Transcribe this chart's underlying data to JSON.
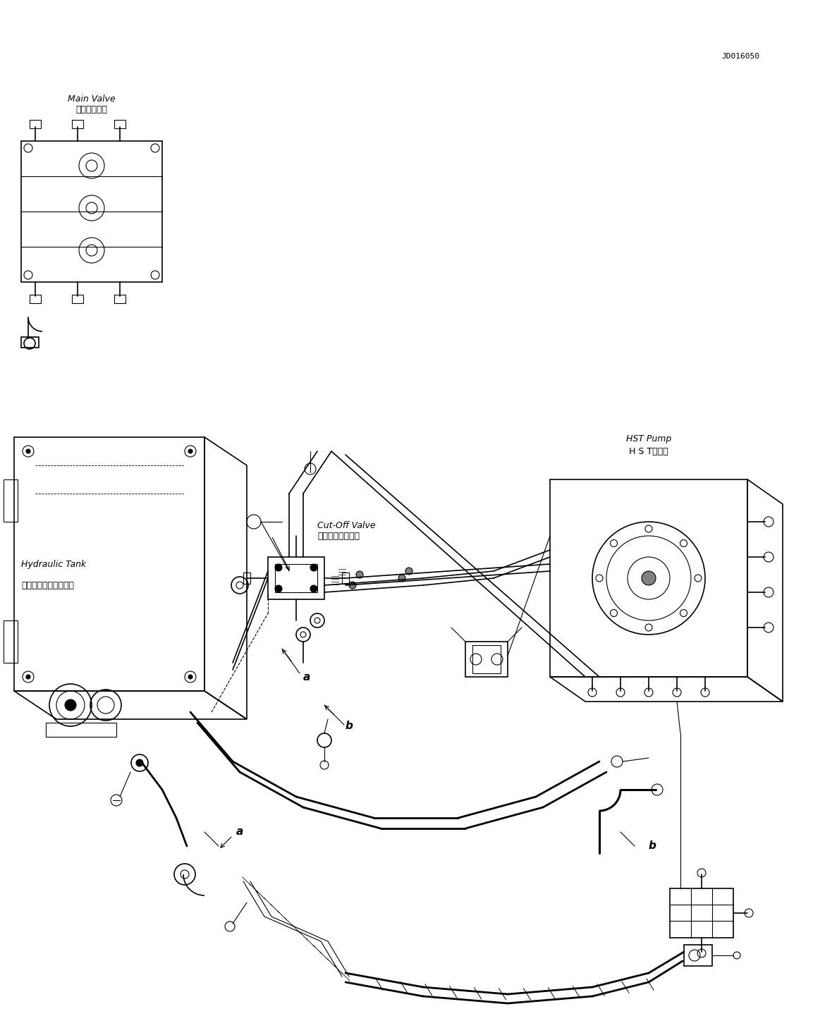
{
  "figure_width": 11.53,
  "figure_height": 14.58,
  "dpi": 100,
  "bg_color": "#ffffff",
  "line_color": "#000000",
  "diagram_code": "JD016050",
  "labels": {
    "hydraulic_tank_jp": "ハイドロリックタンク",
    "hydraulic_tank_en": "Hydraulic Tank",
    "cutoff_valve_jp": "カットオフバルブ",
    "cutoff_valve_en": "Cut-Off Valve",
    "main_valve_jp": "メインバルブ",
    "main_valve_en": "Main Valve",
    "hst_pump_jp": "H S Tポンプ",
    "hst_pump_en": "HST Pump"
  },
  "font_size_label": 9,
  "font_size_code": 8,
  "font_size_letter": 11
}
